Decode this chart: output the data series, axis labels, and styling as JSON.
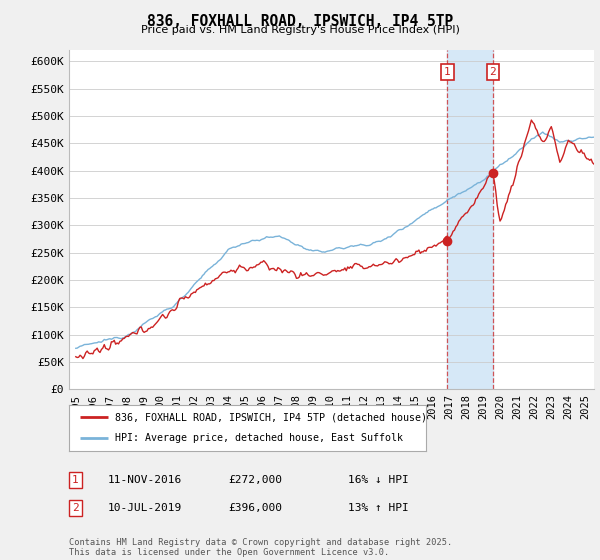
{
  "title": "836, FOXHALL ROAD, IPSWICH, IP4 5TP",
  "subtitle": "Price paid vs. HM Land Registry's House Price Index (HPI)",
  "ylim": [
    0,
    620000
  ],
  "ytick_vals": [
    0,
    50000,
    100000,
    150000,
    200000,
    250000,
    300000,
    350000,
    400000,
    450000,
    500000,
    550000,
    600000
  ],
  "ytick_labels": [
    "£0",
    "£50K",
    "£100K",
    "£150K",
    "£200K",
    "£250K",
    "£300K",
    "£350K",
    "£400K",
    "£450K",
    "£500K",
    "£550K",
    "£600K"
  ],
  "hpi_color": "#7ab3d9",
  "price_color": "#cc2222",
  "sale1_year": 2016.875,
  "sale1_price_val": 272000,
  "sale2_year": 2019.542,
  "sale2_price_val": 396000,
  "sale1_date": "11-NOV-2016",
  "sale1_price": "£272,000",
  "sale1_pct": "16% ↓ HPI",
  "sale2_date": "10-JUL-2019",
  "sale2_price": "£396,000",
  "sale2_pct": "13% ↑ HPI",
  "legend_label1": "836, FOXHALL ROAD, IPSWICH, IP4 5TP (detached house)",
  "legend_label2": "HPI: Average price, detached house, East Suffolk",
  "footer": "Contains HM Land Registry data © Crown copyright and database right 2025.\nThis data is licensed under the Open Government Licence v3.0.",
  "background_color": "#f0f0f0",
  "plot_bg_color": "#ffffff",
  "shaded_region_color": "#d6e8f7",
  "xmin": 1994.6,
  "xmax": 2025.5
}
